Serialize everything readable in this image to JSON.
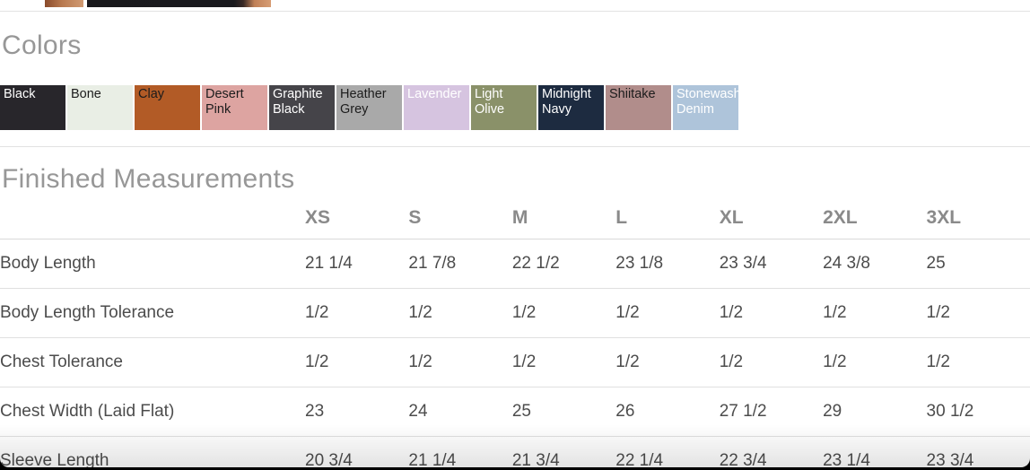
{
  "page": {
    "colors_section": {
      "title": "Colors",
      "swatches": [
        {
          "name": "Black",
          "bg": "#28262b",
          "text_color": "#ffffff"
        },
        {
          "name": "Bone",
          "bg": "#e9eee5",
          "text_color": "#1c1c1c"
        },
        {
          "name": "Clay",
          "bg": "#b25b26",
          "text_color": "#1c1c1c"
        },
        {
          "name": "Desert Pink",
          "bg": "#dda4a1",
          "text_color": "#1c1c1c"
        },
        {
          "name": "Graphite Black",
          "bg": "#454449",
          "text_color": "#ffffff"
        },
        {
          "name": "Heather Grey",
          "bg": "#a9a9a9",
          "text_color": "#1c1c1c"
        },
        {
          "name": "Lavender",
          "bg": "#d6c4e0",
          "text_color": "#ffffff"
        },
        {
          "name": "Light Olive",
          "bg": "#8a9169",
          "text_color": "#ffffff"
        },
        {
          "name": "Midnight Navy",
          "bg": "#1d2b40",
          "text_color": "#ffffff"
        },
        {
          "name": "Shiitake",
          "bg": "#b18d8b",
          "text_color": "#1c1c1c"
        },
        {
          "name": "Stonewash Denim",
          "bg": "#aec4da",
          "text_color": "#ffffff"
        }
      ]
    },
    "measurements_section": {
      "title": "Finished Measurements",
      "columns": [
        "XS",
        "S",
        "M",
        "L",
        "XL",
        "2XL",
        "3XL"
      ],
      "rows": [
        {
          "label": "Body Length",
          "values": [
            "21 1/4",
            "21 7/8",
            "22 1/2",
            "23 1/8",
            "23 3/4",
            "24 3/8",
            "25"
          ]
        },
        {
          "label": "Body Length Tolerance",
          "values": [
            "1/2",
            "1/2",
            "1/2",
            "1/2",
            "1/2",
            "1/2",
            "1/2"
          ]
        },
        {
          "label": "Chest Tolerance",
          "values": [
            "1/2",
            "1/2",
            "1/2",
            "1/2",
            "1/2",
            "1/2",
            "1/2"
          ]
        },
        {
          "label": "Chest Width (Laid Flat)",
          "values": [
            "23",
            "24",
            "25",
            "26",
            "27 1/2",
            "29",
            "30 1/2"
          ]
        },
        {
          "label": "Sleeve Length",
          "values": [
            "20 3/4",
            "21 1/4",
            "21 3/4",
            "22 1/4",
            "22 3/4",
            "23 1/4",
            "23 3/4"
          ]
        }
      ]
    }
  }
}
